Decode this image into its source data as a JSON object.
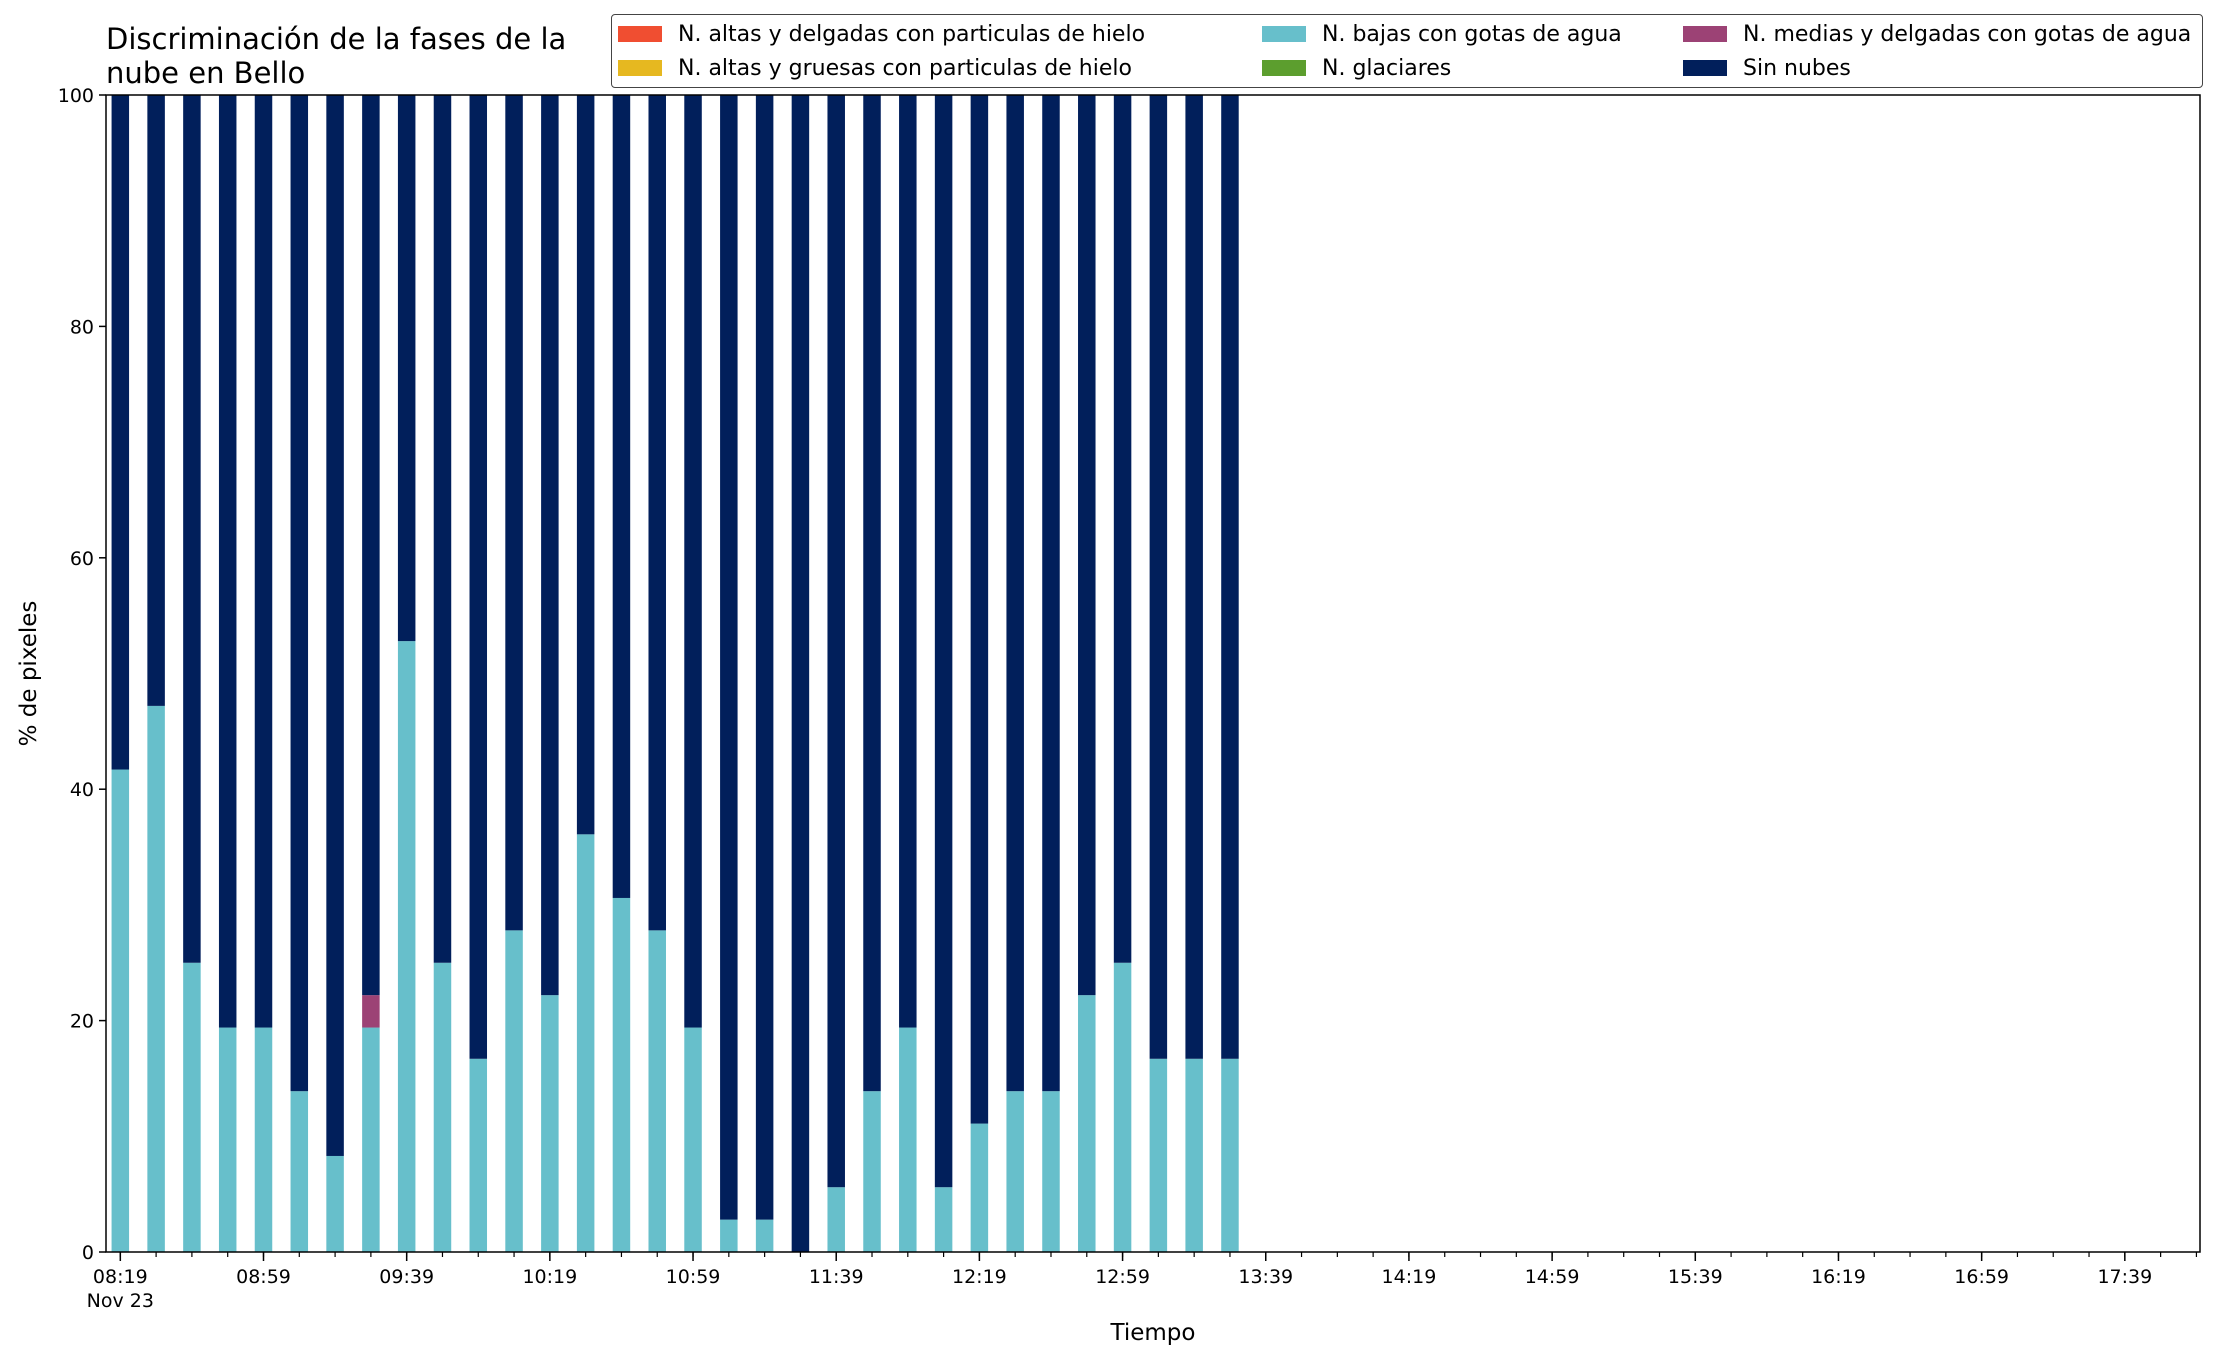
{
  "chart_data": {
    "type": "bar",
    "stacked": true,
    "title": "Discriminación de la fases de la\nnube en Bello",
    "xlabel": "Tiempo",
    "ylabel": "% de pixeles",
    "ylim": [
      0,
      100
    ],
    "yticks": [
      0,
      20,
      40,
      60,
      80,
      100
    ],
    "xlim": [
      "08:15",
      "18:00"
    ],
    "xtick_labels": [
      "08:19",
      "08:59",
      "09:39",
      "10:19",
      "10:59",
      "11:39",
      "12:19",
      "12:59",
      "13:39",
      "14:19",
      "14:59",
      "15:39",
      "16:19",
      "16:59",
      "17:39"
    ],
    "xtick_date_label": "Nov 23",
    "minor_tick_interval_minutes": 10,
    "bar_interval_minutes": 10,
    "categories": [
      "08:19",
      "08:29",
      "08:39",
      "08:49",
      "08:59",
      "09:09",
      "09:19",
      "09:29",
      "09:39",
      "09:49",
      "09:59",
      "10:09",
      "10:19",
      "10:29",
      "10:39",
      "10:49",
      "10:59",
      "11:09",
      "11:19",
      "11:29",
      "11:39",
      "11:49",
      "11:59",
      "12:09",
      "12:19",
      "12:29",
      "12:39",
      "12:49",
      "12:59",
      "13:09",
      "13:19",
      "13:29"
    ],
    "series": [
      {
        "name": "N. altas y delgadas con particulas de hielo",
        "color": "#f04e31",
        "values": [
          0,
          0,
          0,
          0,
          0,
          0,
          0,
          0,
          0,
          0,
          0,
          0,
          0,
          0,
          0,
          0,
          0,
          0,
          0,
          0,
          0,
          0,
          0,
          0,
          0,
          0,
          0,
          0,
          0,
          0,
          0,
          0
        ]
      },
      {
        "name": "N. altas y gruesas con particulas de hielo",
        "color": "#e6b820",
        "values": [
          0,
          0,
          0,
          0,
          0,
          0,
          0,
          0,
          0,
          0,
          0,
          0,
          0,
          0,
          0,
          0,
          0,
          0,
          0,
          0,
          0,
          0,
          0,
          0,
          0,
          0,
          0,
          0,
          0,
          0,
          0,
          0
        ]
      },
      {
        "name": "N. bajas con gotas de agua",
        "color": "#67bfcb",
        "values": [
          41.7,
          47.2,
          25.0,
          19.4,
          19.4,
          13.9,
          8.3,
          19.4,
          52.8,
          25.0,
          16.7,
          27.8,
          22.2,
          36.1,
          30.6,
          27.8,
          19.4,
          2.8,
          2.8,
          0,
          5.6,
          13.9,
          19.4,
          5.6,
          11.1,
          13.9,
          13.9,
          22.2,
          25.0,
          16.7,
          16.7,
          16.7
        ]
      },
      {
        "name": "N. glaciares",
        "color": "#5c9e2e",
        "values": [
          0,
          0,
          0,
          0,
          0,
          0,
          0,
          0,
          0,
          0,
          0,
          0,
          0,
          0,
          0,
          0,
          0,
          0,
          0,
          0,
          0,
          0,
          0,
          0,
          0,
          0,
          0,
          0,
          0,
          0,
          0,
          0
        ]
      },
      {
        "name": "N. medias y delgadas con gotas de agua",
        "color": "#9c4275",
        "values": [
          0,
          0,
          0,
          0,
          0,
          0,
          0,
          2.8,
          0,
          0,
          0,
          0,
          0,
          0,
          0,
          0,
          0,
          0,
          0,
          0,
          0,
          0,
          0,
          0,
          0,
          0,
          0,
          0,
          0,
          0,
          0,
          0
        ]
      },
      {
        "name": "Sin nubes",
        "color": "#011f5b",
        "values": [
          58.3,
          52.8,
          75.0,
          80.6,
          80.6,
          86.1,
          91.7,
          77.8,
          47.2,
          75.0,
          83.3,
          72.2,
          77.8,
          63.9,
          69.4,
          72.2,
          80.6,
          97.2,
          97.2,
          100,
          94.4,
          86.1,
          80.6,
          94.4,
          88.9,
          86.1,
          86.1,
          77.8,
          75.0,
          83.3,
          83.3,
          83.3
        ]
      }
    ],
    "legend": {
      "placement": "top-right",
      "columns": 3
    }
  }
}
